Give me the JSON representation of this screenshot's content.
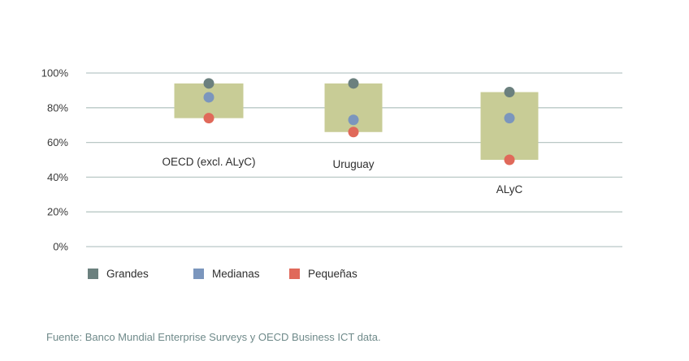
{
  "chart_data": {
    "type": "scatter",
    "subtype": "range-box-with-dots",
    "title": "",
    "xlabel": "",
    "ylabel": "",
    "ylim": [
      0,
      100
    ],
    "yticks": [
      0,
      20,
      40,
      60,
      80,
      100
    ],
    "ytick_labels": [
      "0%",
      "20%",
      "40%",
      "60%",
      "80%",
      "100%"
    ],
    "grid": true,
    "categories": [
      "OECD (excl. ALyC)",
      "Uruguay",
      "ALyC"
    ],
    "series": [
      {
        "name": "Grandes",
        "color": "#6b807e",
        "values": [
          94,
          94,
          89
        ]
      },
      {
        "name": "Medianas",
        "color": "#7b96bd",
        "values": [
          86,
          73,
          74
        ]
      },
      {
        "name": "Pequeñas",
        "color": "#e0695a",
        "values": [
          74,
          66,
          50
        ]
      }
    ],
    "range_box_color": "#c8cc96",
    "legend_position": "bottom-left",
    "source": "Fuente: Banco Mundial Enterprise Surveys y OECD Business ICT data."
  },
  "colors": {
    "grid": "#b9c8c6",
    "box": "#c8cc96"
  }
}
